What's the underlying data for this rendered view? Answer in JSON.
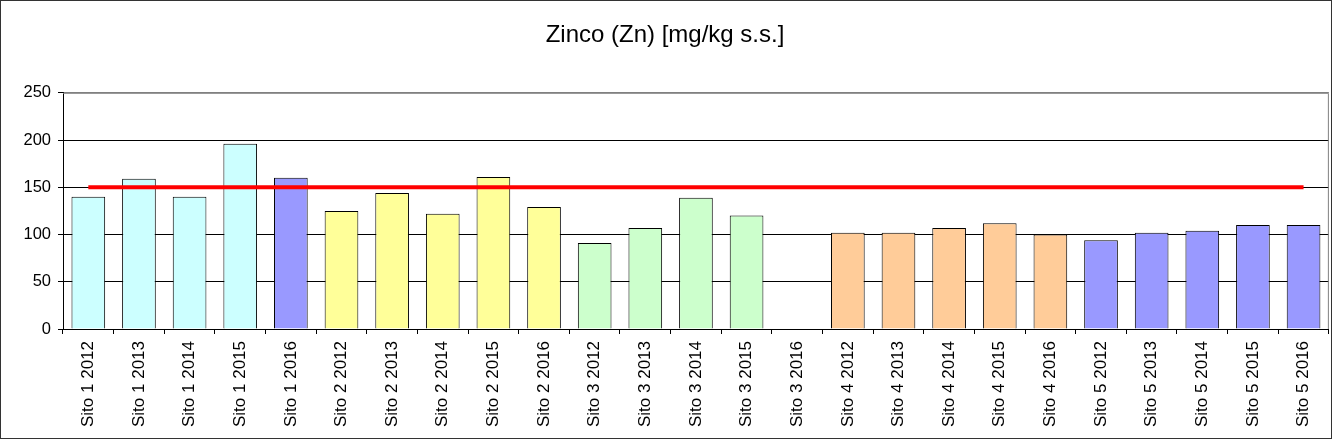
{
  "chart_data": {
    "type": "bar",
    "title": "Zinco (Zn) [mg/kg s.s.]",
    "categories": [
      "Sito 1 2012",
      "Sito 1 2013",
      "Sito 1 2014",
      "Sito 1 2015",
      "Sito 1 2016",
      "Sito 2 2012",
      "Sito 2 2013",
      "Sito 2 2014",
      "Sito 2 2015",
      "Sito 2 2016",
      "Sito 3 2012",
      "Sito 3 2013",
      "Sito 3 2014",
      "Sito 3 2015",
      "Sito 3 2016",
      "Sito 4 2012",
      "Sito 4 2013",
      "Sito 4 2014",
      "Sito 4 2015",
      "Sito 4 2016",
      "Sito 5 2012",
      "Sito 5 2013",
      "Sito 5 2014",
      "Sito 5 2015",
      "Sito 5 2016"
    ],
    "values": [
      140,
      159,
      140,
      196,
      160,
      125,
      144,
      122,
      161,
      129,
      91,
      107,
      139,
      120,
      null,
      102,
      102,
      107,
      112,
      100,
      94,
      102,
      104,
      110,
      110
    ],
    "colors": [
      "#ccffff",
      "#ccffff",
      "#ccffff",
      "#ccffff",
      "#9999ff",
      "#ffff99",
      "#ffff99",
      "#ffff99",
      "#ffff99",
      "#ffff99",
      "#ccffcc",
      "#ccffcc",
      "#ccffcc",
      "#ccffcc",
      "#ccffcc",
      "#ffcc99",
      "#ffcc99",
      "#ffcc99",
      "#ffcc99",
      "#ffcc99",
      "#9999ff",
      "#9999ff",
      "#9999ff",
      "#9999ff",
      "#9999ff"
    ],
    "ylim": [
      0,
      250
    ],
    "yticks": [
      0,
      50,
      100,
      150,
      200,
      250
    ],
    "grid": "y",
    "ref_lines": [
      {
        "axis": "y",
        "value": 150,
        "color": "#ff0000"
      }
    ]
  }
}
